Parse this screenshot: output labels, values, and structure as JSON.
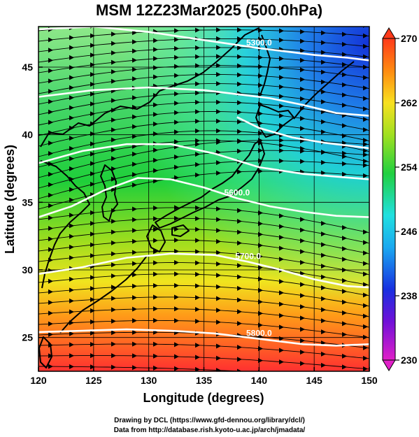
{
  "title": "MSM 12Z23Mar2025 (500.0hPa)",
  "map": {
    "xlabel": "Longitude (degrees)",
    "ylabel": "Latitude  (degrees)",
    "xlim": [
      120,
      150
    ],
    "ylim": [
      22.5,
      48
    ],
    "xticks": [
      120,
      125,
      130,
      135,
      140,
      145,
      150
    ],
    "yticks": [
      25,
      30,
      35,
      40,
      45
    ],
    "contours": [
      {
        "label": "5300.0",
        "points": [
          [
            120,
            47.8
          ],
          [
            125,
            48
          ],
          [
            130,
            47.6
          ],
          [
            135,
            47
          ],
          [
            140,
            46.4
          ],
          [
            145,
            45.9
          ],
          [
            148,
            45.7
          ],
          [
            150,
            45.5
          ]
        ]
      },
      {
        "label": "",
        "points": [
          [
            120,
            42.8
          ],
          [
            125,
            43.3
          ],
          [
            130,
            43.5
          ],
          [
            135,
            43.3
          ],
          [
            138,
            43
          ],
          [
            141,
            42.7
          ],
          [
            144,
            42.2
          ],
          [
            147,
            41.6
          ],
          [
            150,
            41.4
          ]
        ]
      },
      {
        "label": "",
        "points": [
          [
            138,
            41.3
          ],
          [
            140,
            40.5
          ],
          [
            143,
            39.8
          ],
          [
            146,
            39.4
          ],
          [
            150,
            39
          ]
        ]
      },
      {
        "label": "",
        "points": [
          [
            120,
            37.9
          ],
          [
            124,
            38.8
          ],
          [
            128,
            39.3
          ],
          [
            132,
            39.3
          ],
          [
            136,
            38.6
          ],
          [
            140,
            37.6
          ],
          [
            144,
            37.1
          ],
          [
            150,
            36.7
          ]
        ]
      },
      {
        "label": "5600.0",
        "points": [
          [
            120,
            33.9
          ],
          [
            123,
            34.7
          ],
          [
            126,
            35.9
          ],
          [
            129,
            36.8
          ],
          [
            132,
            36.7
          ],
          [
            135,
            36.1
          ],
          [
            138,
            35.3
          ],
          [
            141,
            34.7
          ],
          [
            144,
            34.3
          ],
          [
            147,
            34
          ],
          [
            150,
            33.9
          ]
        ]
      },
      {
        "label": "5700.0",
        "points": [
          [
            120,
            29.7
          ],
          [
            124,
            30.2
          ],
          [
            128,
            30.9
          ],
          [
            132,
            31.2
          ],
          [
            136,
            31.1
          ],
          [
            139,
            30.6
          ],
          [
            142,
            30
          ],
          [
            145,
            29.3
          ],
          [
            148,
            28.8
          ],
          [
            150,
            28.7
          ]
        ]
      },
      {
        "label": "5800.0",
        "points": [
          [
            120,
            25.4
          ],
          [
            124,
            25.5
          ],
          [
            128,
            25.6
          ],
          [
            132,
            25.5
          ],
          [
            136,
            25.3
          ],
          [
            140,
            24.9
          ],
          [
            144,
            24.5
          ],
          [
            147,
            24.4
          ],
          [
            150,
            24.5
          ]
        ]
      }
    ]
  },
  "colorbar": {
    "min": 230,
    "max": 270,
    "ticks": [
      230,
      238,
      246,
      254,
      262,
      270
    ]
  },
  "credits": {
    "line1": "Drawing by DCL (https://www.gfd-dennou.org/library/dcl/)",
    "line2": "Data from http://database.rish.kyoto-u.ac.jp/arch/jmadata/"
  }
}
